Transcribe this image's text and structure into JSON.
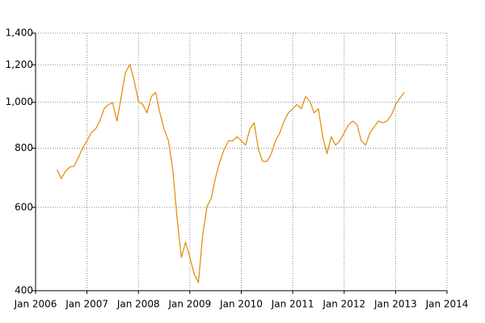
{
  "chart_data": {
    "type": "line",
    "log_y": true,
    "grid": true,
    "color": "#e08a00",
    "x": [
      "2006-06",
      "2006-07",
      "2006-08",
      "2006-09",
      "2006-10",
      "2006-11",
      "2006-12",
      "2007-01",
      "2007-02",
      "2007-03",
      "2007-04",
      "2007-05",
      "2007-06",
      "2007-07",
      "2007-08",
      "2007-09",
      "2007-10",
      "2007-11",
      "2007-12",
      "2008-01",
      "2008-02",
      "2008-03",
      "2008-04",
      "2008-05",
      "2008-06",
      "2008-07",
      "2008-08",
      "2008-09",
      "2008-10",
      "2008-11",
      "2008-12",
      "2009-01",
      "2009-02",
      "2009-03",
      "2009-04",
      "2009-05",
      "2009-06",
      "2009-07",
      "2009-08",
      "2009-09",
      "2009-10",
      "2009-11",
      "2009-12",
      "2010-01",
      "2010-02",
      "2010-03",
      "2010-04",
      "2010-05",
      "2010-06",
      "2010-07",
      "2010-08",
      "2010-09",
      "2010-10",
      "2010-11",
      "2010-12",
      "2011-01",
      "2011-02",
      "2011-03",
      "2011-04",
      "2011-05",
      "2011-06",
      "2011-07",
      "2011-08",
      "2011-09",
      "2011-10",
      "2011-11",
      "2011-12",
      "2012-01",
      "2012-02",
      "2012-03",
      "2012-04",
      "2012-05",
      "2012-06",
      "2012-07",
      "2012-08",
      "2012-09",
      "2012-10",
      "2012-11",
      "2012-12",
      "2013-01",
      "2013-02",
      "2013-03"
    ],
    "values": [
      721,
      690,
      715,
      730,
      733,
      765,
      801,
      829,
      862,
      878,
      913,
      969,
      989,
      997,
      913,
      1028,
      1158,
      1201,
      1112,
      1005,
      989,
      950,
      1028,
      1050,
      950,
      878,
      829,
      721,
      571,
      470,
      506,
      470,
      434,
      416,
      526,
      602,
      627,
      694,
      750,
      795,
      829,
      829,
      846,
      829,
      812,
      878,
      905,
      795,
      750,
      750,
      779,
      829,
      862,
      913,
      950,
      969,
      989,
      969,
      1028,
      1005,
      950,
      969,
      846,
      779,
      846,
      812,
      829,
      862,
      896,
      913,
      896,
      829,
      812,
      862,
      887,
      913,
      905,
      913,
      939,
      989,
      1020,
      1050
    ],
    "xlim": [
      "2006-01",
      "2014-01"
    ],
    "xticks": [
      {
        "value": "2006-01",
        "label": "Jan 2006"
      },
      {
        "value": "2007-01",
        "label": "Jan 2007"
      },
      {
        "value": "2008-01",
        "label": "Jan 2008"
      },
      {
        "value": "2009-01",
        "label": "Jan 2009"
      },
      {
        "value": "2010-01",
        "label": "Jan 2010"
      },
      {
        "value": "2011-01",
        "label": "Jan 2011"
      },
      {
        "value": "2012-01",
        "label": "Jan 2012"
      },
      {
        "value": "2013-01",
        "label": "Jan 2013"
      },
      {
        "value": "2014-01",
        "label": "Jan 2014"
      }
    ],
    "ylim": [
      400,
      1400
    ],
    "yticks": [
      400,
      600,
      800,
      {
        "value": 1000,
        "label": "1,000"
      },
      {
        "value": 1200,
        "label": "1,200"
      },
      {
        "value": 1400,
        "label": "1,400"
      }
    ]
  }
}
